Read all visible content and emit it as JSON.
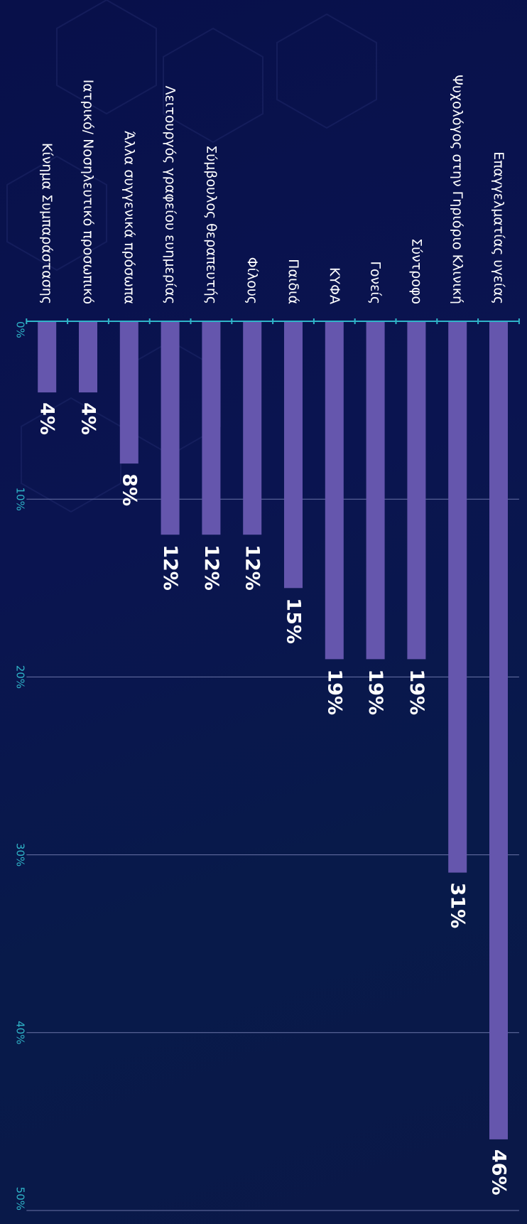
{
  "colors": {
    "bar": "#6556ad",
    "grid": "#6a74a8",
    "axis": "#2fb4c8",
    "tick_label": "#2fb4c8",
    "category_label": "#ffffff",
    "value_label": "#ffffff"
  },
  "chart_data": {
    "type": "bar",
    "orientation": "horizontal",
    "view_rotation_deg": 90,
    "grid": true,
    "xlim": [
      0,
      50
    ],
    "x_ticks": [
      "0%",
      "10%",
      "20%",
      "30%",
      "40%",
      "50%"
    ],
    "categories": [
      "Επαγγελματίας υγείας",
      "Ψυχολόγος στην Γηριόριο Κλινική",
      "Σύντροφο",
      "Γονείς",
      "ΚΥΦΑ",
      "Παιδιά",
      "Φίλους",
      "Σύμβουλος θεραπευτής",
      "Λειτουργός γραφείου ευημερίας",
      "Άλλα συγγενικά πρόσωπα",
      "Ιατρικό/ Νοσηλευτικό προσωπικό",
      "Κίνημα Συμπαράστασης"
    ],
    "values": [
      46,
      31,
      19,
      19,
      19,
      15,
      12,
      12,
      12,
      8,
      4,
      4
    ],
    "value_labels": [
      "46%",
      "31%",
      "19%",
      "19%",
      "19%",
      "15%",
      "12%",
      "12%",
      "12%",
      "8%",
      "4%",
      "4%"
    ]
  }
}
